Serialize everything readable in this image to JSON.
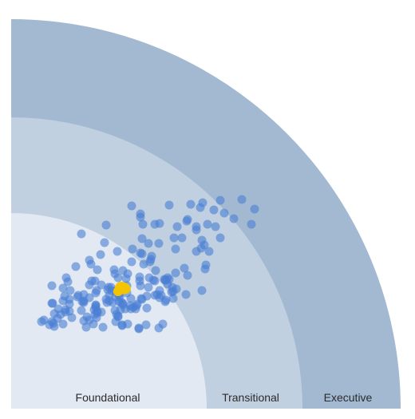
{
  "chart_data": {
    "type": "scatter",
    "title": "",
    "xlabel": "",
    "ylabel": "",
    "zones": [
      {
        "name": "Foundational",
        "outer_radius": 245,
        "color": "#e2e9f2"
      },
      {
        "name": "Transitional",
        "outer_radius": 365,
        "color": "#c1d0e0"
      },
      {
        "name": "Executive",
        "outer_radius": 488,
        "color": "#a3b9d1"
      }
    ],
    "series": [
      {
        "color": "#4a7fd4",
        "x": [
          289,
          262,
          240,
          225,
          198,
          151,
          237,
          305,
          254,
          267,
          162,
          162,
          279,
          221,
          220,
          186,
          180,
          301,
          246,
          165,
          119,
          208,
          232,
          256,
          232,
          88,
          214,
          204,
          262,
          164,
          239,
          117,
          185,
          172,
          242,
          238,
          206,
          152,
          232,
          248,
          133,
          162,
          164,
          112,
          176,
          175,
          98,
          174,
          151,
          166,
          100,
          244,
          81,
          217,
          243,
          108,
          129,
          181,
          140,
          206,
          130,
          146,
          221,
          161,
          69,
          134,
          173,
          196,
          144,
          192,
          198,
          193,
          194,
          178,
          180,
          101,
          105,
          161,
          71,
          196,
          113,
          98,
          145,
          51,
          162,
          125,
          202,
          172,
          122,
          65,
          207,
          121,
          74,
          107,
          239,
          186,
          126,
          203,
          131,
          201,
          106,
          145,
          136,
          91,
          183,
          219,
          84,
          188,
          135,
          123,
          180,
          67,
          170,
          131,
          136,
          83,
          186,
          98,
          203,
          163,
          150,
          73,
          119,
          164,
          194,
          65,
          91,
          123,
          89,
          193,
          135,
          91,
          138,
          120,
          127,
          140,
          52,
          51,
          73,
          158,
          140,
          106,
          149,
          106,
          157,
          106,
          153,
          170,
          143,
          150,
          59,
          156,
          104,
          137,
          68,
          88,
          130,
          73,
          108,
          68,
          113,
          108,
          54,
          132,
          105,
          62,
          134,
          134,
          95,
          107,
          76,
          58,
          41,
          98,
          91,
          131,
          38,
          51,
          53,
          65,
          103,
          190,
          146,
          169,
          48,
          139,
          139,
          54,
          94,
          115,
          160,
          185,
          160
        ],
        "y": [
          300,
          301,
          304,
          306,
          307,
          308,
          310,
          312,
          313,
          317,
          318,
          322,
          324,
          325,
          327,
          330,
          331,
          331,
          331,
          331,
          332,
          334,
          334,
          334,
          338,
          343,
          348,
          348,
          348,
          349,
          351,
          354,
          355,
          355,
          357,
          361,
          362,
          362,
          365,
          365,
          365,
          367,
          368,
          369,
          371,
          375,
          376,
          378,
          378,
          381,
          381,
          382,
          384,
          386,
          387,
          388,
          388,
          389,
          389,
          392,
          393,
          393,
          395,
          397,
          398,
          398,
          398,
          398,
          399,
          400,
          400,
          401,
          401,
          401,
          402,
          402,
          402,
          402,
          403,
          406,
          407,
          407,
          408,
          408,
          408,
          410,
          410,
          410,
          410,
          411,
          412,
          413,
          414,
          414,
          414,
          414,
          414,
          415,
          415,
          416,
          417,
          417,
          417,
          419,
          419,
          419,
          420,
          420,
          420,
          420,
          420,
          421,
          421,
          422,
          422,
          422,
          423,
          423,
          424,
          424,
          424,
          425,
          425,
          425,
          426,
          427,
          427,
          427,
          428,
          428,
          428,
          429,
          429,
          429,
          429,
          430,
          430,
          430,
          431,
          431,
          432,
          432,
          433,
          433,
          433,
          435,
          435,
          436,
          437,
          437,
          437,
          437,
          438,
          438,
          438,
          439,
          439,
          440,
          440,
          441,
          441,
          442,
          443,
          444,
          444,
          444,
          446,
          447,
          447,
          448,
          448,
          449,
          451,
          451,
          452,
          453,
          453,
          453,
          455,
          456,
          456,
          456,
          456,
          457,
          457,
          457,
          458,
          459,
          460,
          460,
          461,
          461,
          462
        ]
      },
      {
        "color": "#f5c400",
        "x": [
          134,
          134,
          141,
          141,
          144,
          143,
          142,
          140,
          139,
          137,
          136
        ],
        "y": [
          415,
          415,
          413,
          411,
          412,
          411,
          410,
          410,
          409,
          409,
          410
        ]
      }
    ]
  },
  "labels": {
    "foundational": "Foundational",
    "transitional": "Transitional",
    "executive": "Executive"
  }
}
